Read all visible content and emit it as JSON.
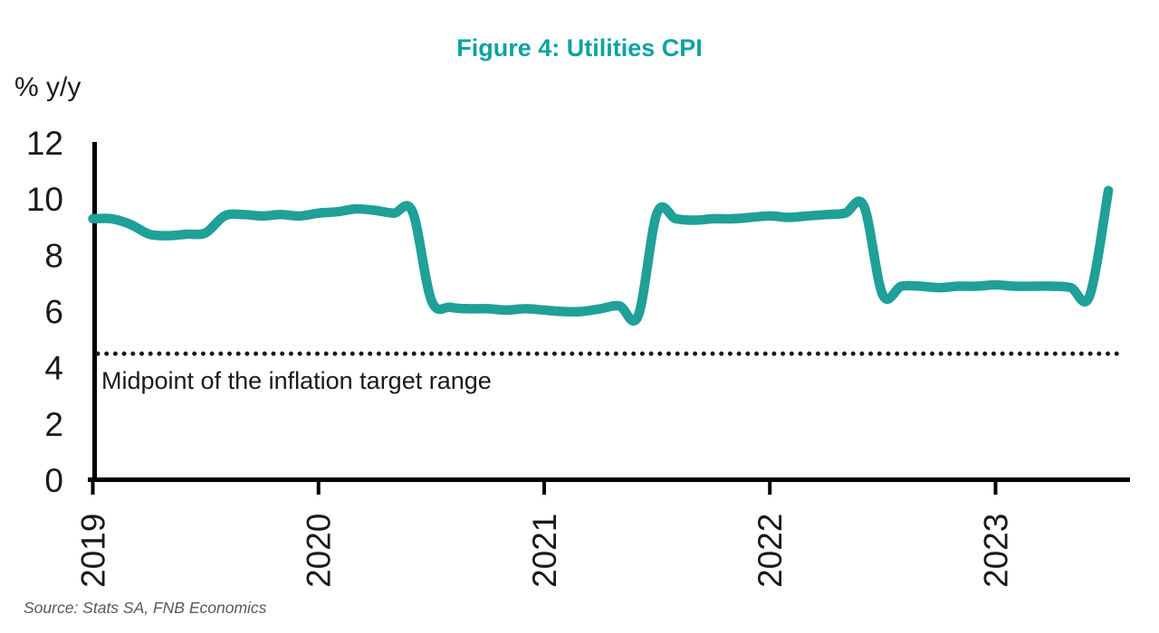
{
  "source": "Source: Stats SA, FNB Economics",
  "colors": {
    "title_teal": "#0FA2A2",
    "line_teal": "#1FA098",
    "axis_black": "#000000",
    "label_black": "#1A1A1A",
    "source_gray": "#595959"
  },
  "chart_data": {
    "type": "line",
    "title": "Figure 4: Utilities CPI",
    "ylabel": "% y/y",
    "xlabel": "",
    "ylim": [
      0,
      12
    ],
    "y_ticks": [
      0,
      2,
      4,
      6,
      8,
      10,
      12
    ],
    "x_ticks": [
      "2019",
      "2020",
      "2021",
      "2022",
      "2023"
    ],
    "x_start_month": "2019-01",
    "x_end_month": "2023-07",
    "frequency": "monthly",
    "grid": false,
    "legend_position": "none",
    "series": [
      {
        "name": "Utilities CPI (% y/y)",
        "values": [
          9.3,
          9.3,
          9.1,
          8.75,
          8.7,
          8.75,
          8.8,
          9.4,
          9.45,
          9.4,
          9.45,
          9.4,
          9.5,
          9.55,
          9.65,
          9.6,
          9.5,
          9.55,
          6.4,
          6.15,
          6.1,
          6.1,
          6.05,
          6.1,
          6.05,
          6.0,
          6.0,
          6.1,
          6.2,
          5.85,
          9.5,
          9.3,
          9.25,
          9.3,
          9.3,
          9.35,
          9.4,
          9.35,
          9.4,
          9.45,
          9.5,
          9.75,
          6.6,
          6.9,
          6.9,
          6.85,
          6.9,
          6.9,
          6.95,
          6.9,
          6.9,
          6.9,
          6.85,
          6.55,
          10.3
        ]
      }
    ],
    "reference_line": {
      "value": 4.5,
      "label": "Midpoint of the inflation target range",
      "style": "dotted"
    }
  }
}
